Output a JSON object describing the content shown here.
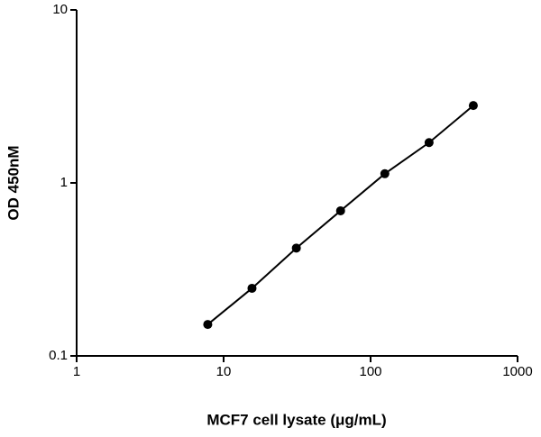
{
  "chart_data": {
    "type": "scatter",
    "x_label": "MCF7 cell lysate (μg/mL)",
    "y_label": "OD 450nM",
    "x_log": true,
    "y_log": true,
    "connect": true,
    "xlim": [
      1,
      1000
    ],
    "xticks": [
      1,
      10,
      100,
      1000
    ],
    "ylim": [
      0.1,
      10
    ],
    "yticks": [
      0.1,
      1,
      10
    ],
    "series": [
      {
        "color": "#000000",
        "x": [
          7.8,
          15.6,
          31.25,
          62.5,
          125,
          250,
          500
        ],
        "values": [
          0.152,
          0.246,
          0.42,
          0.69,
          1.13,
          1.71,
          2.8
        ]
      }
    ]
  }
}
